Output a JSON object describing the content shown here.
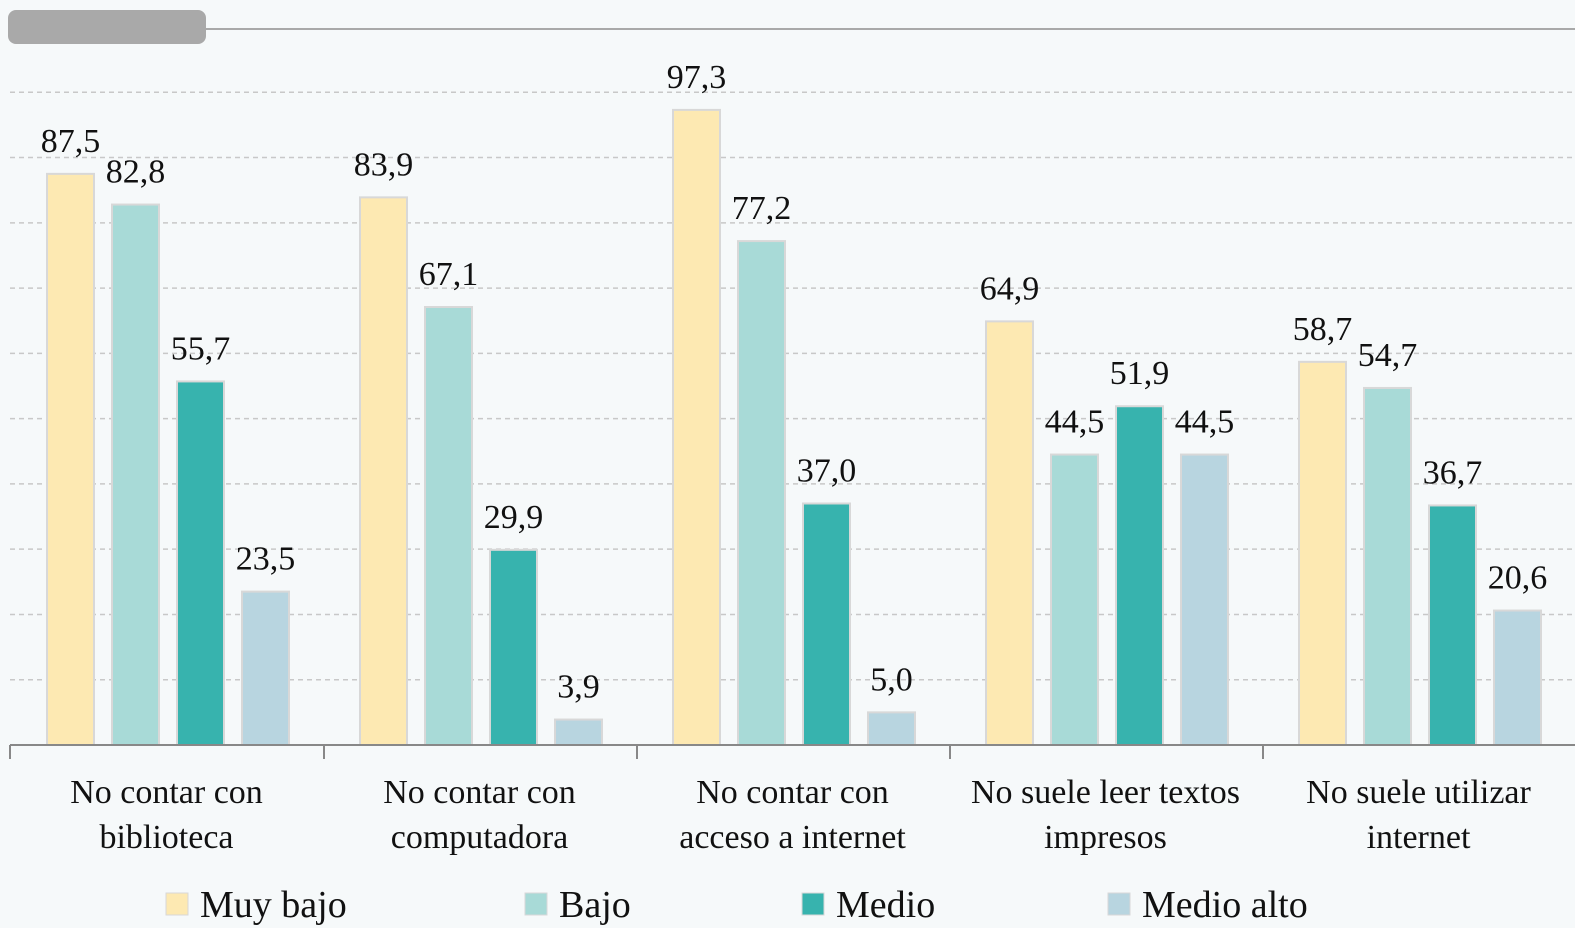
{
  "chart_data": {
    "type": "bar",
    "categories": [
      "No contar con\nbiblioteca",
      "No contar con\ncomputadora",
      "No contar con\nacceso a internet",
      "No suele leer textos\nimpresos",
      "No suele utilizar\ninternet"
    ],
    "series": [
      {
        "name": "Muy bajo",
        "color": "#fde9b2",
        "values": [
          87.5,
          83.9,
          97.3,
          64.9,
          58.7
        ],
        "value_labels": [
          "87,5",
          "83,9",
          "97,3",
          "64,9",
          "58,7"
        ]
      },
      {
        "name": "Bajo",
        "color": "#a8dad7",
        "values": [
          82.8,
          67.1,
          77.2,
          44.5,
          54.7
        ],
        "value_labels": [
          "82,8",
          "67,1",
          "77,2",
          "44,5",
          "54,7"
        ]
      },
      {
        "name": "Medio",
        "color": "#37b3ae",
        "values": [
          55.7,
          29.9,
          37.0,
          51.9,
          36.7
        ],
        "value_labels": [
          "55,7",
          "29,9",
          "37,0",
          "51,9",
          "36,7"
        ]
      },
      {
        "name": "Medio alto",
        "color": "#b8d5e0",
        "values": [
          23.5,
          3.9,
          5.0,
          44.5,
          20.6
        ],
        "value_labels": [
          "23,5",
          "3,9",
          "5,0",
          "44,5",
          "20,6"
        ]
      }
    ],
    "ylim": [
      0,
      110
    ],
    "yticks": [
      0,
      10,
      20,
      30,
      40,
      50,
      60,
      70,
      80,
      90,
      100
    ],
    "grid": true
  }
}
